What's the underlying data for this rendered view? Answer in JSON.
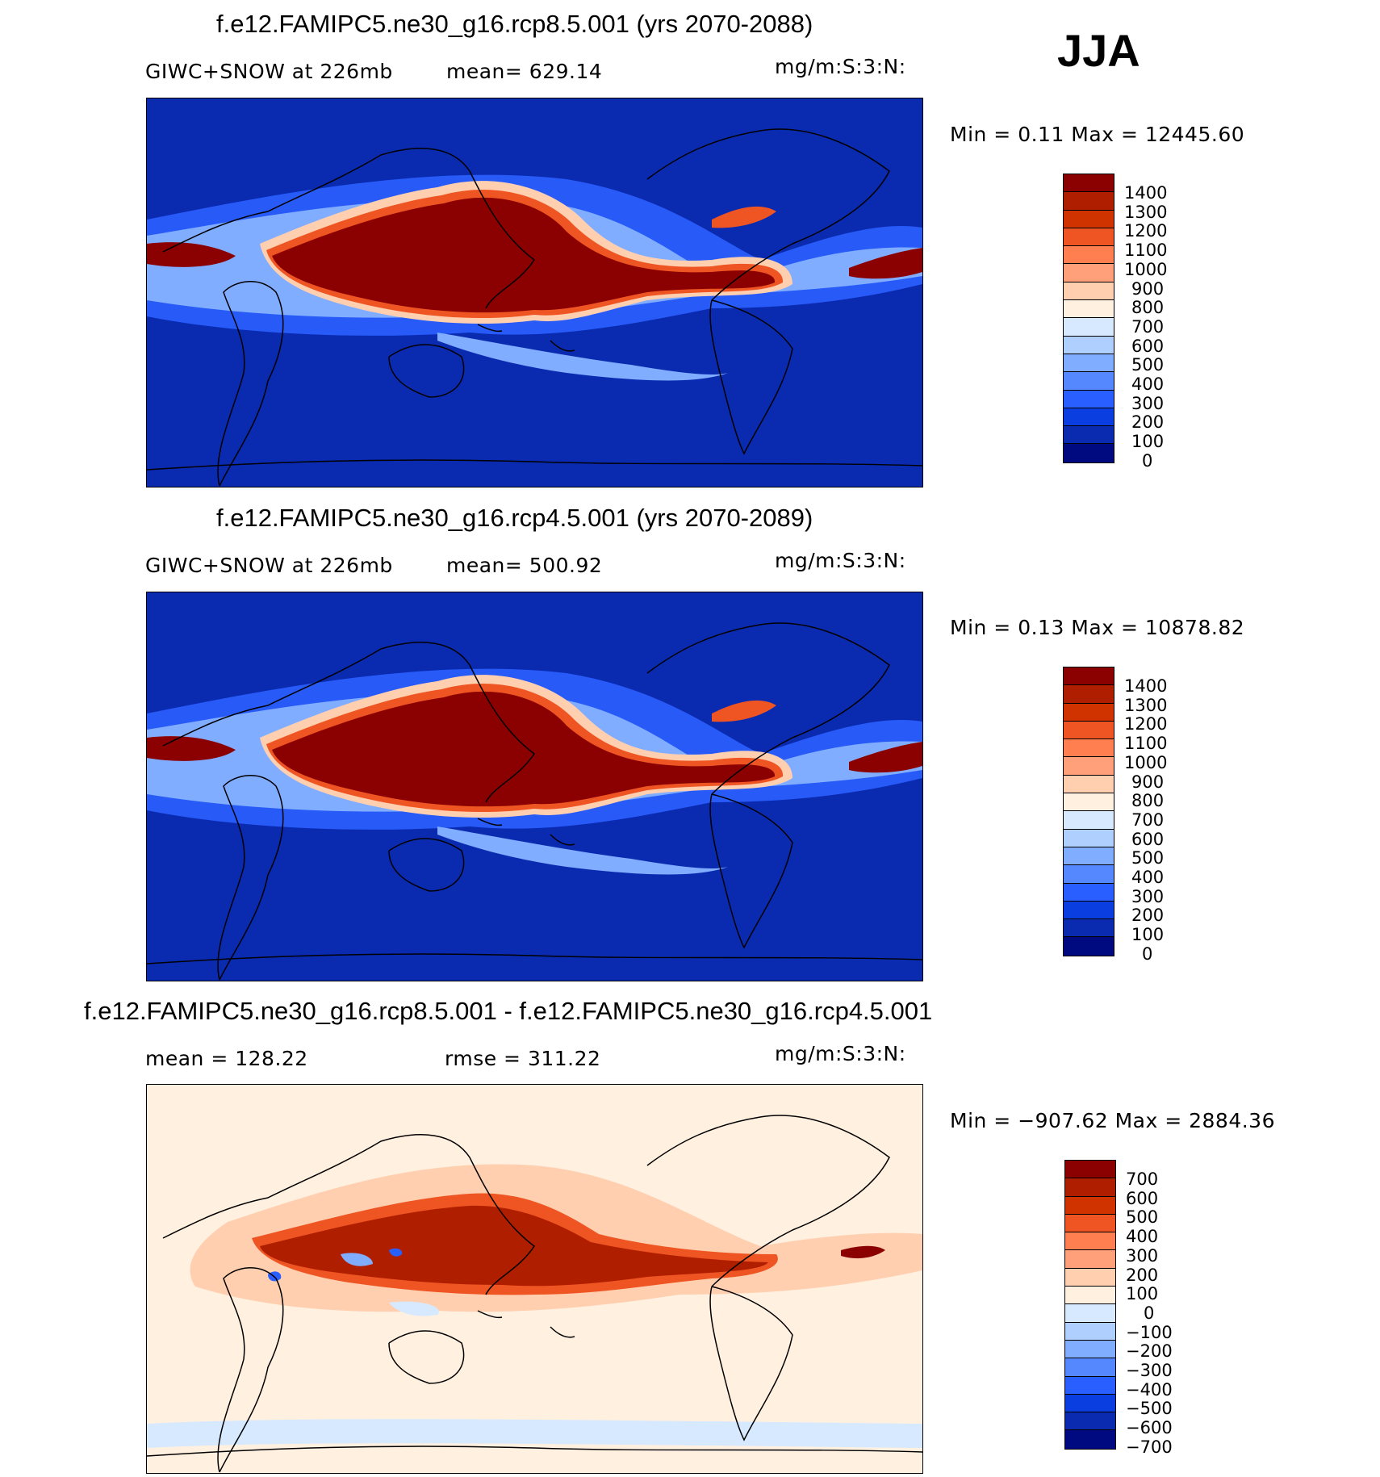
{
  "season": "JJA",
  "panels": [
    {
      "title": "f.e12.FAMIPC5.ne30_g16.rcp8.5.001 (yrs 2070-2088)",
      "left_text": "GIWC+SNOW at 226mb",
      "center_text": "mean= 629.14",
      "units": "mg/m:S:3:N:",
      "minmax": "Min =    0.11 Max = 12445.60",
      "colorbar_labels": [
        "1400",
        "1300",
        "1200",
        "1100",
        "1000",
        "900",
        "800",
        "700",
        "600",
        "500",
        "400",
        "300",
        "200",
        "100",
        "0"
      ],
      "colorbar_colors": [
        "#8b0000",
        "#b01e00",
        "#d03300",
        "#ee5522",
        "#ff7f50",
        "#ffa07a",
        "#ffcfb0",
        "#fff0e0",
        "#d6e9ff",
        "#afcfff",
        "#80adff",
        "#5588ff",
        "#2a5fff",
        "#0a3ee0",
        "#0a2ab0",
        "#000a80"
      ],
      "map_type": "absolute"
    },
    {
      "title": "f.e12.FAMIPC5.ne30_g16.rcp4.5.001 (yrs 2070-2089)",
      "left_text": "GIWC+SNOW at 226mb",
      "center_text": "mean= 500.92",
      "units": "mg/m:S:3:N:",
      "minmax": "Min =    0.13 Max = 10878.82",
      "colorbar_labels": [
        "1400",
        "1300",
        "1200",
        "1100",
        "1000",
        "900",
        "800",
        "700",
        "600",
        "500",
        "400",
        "300",
        "200",
        "100",
        "0"
      ],
      "colorbar_colors": [
        "#8b0000",
        "#b01e00",
        "#d03300",
        "#ee5522",
        "#ff7f50",
        "#ffa07a",
        "#ffcfb0",
        "#fff0e0",
        "#d6e9ff",
        "#afcfff",
        "#80adff",
        "#5588ff",
        "#2a5fff",
        "#0a3ee0",
        "#0a2ab0",
        "#000a80"
      ],
      "map_type": "absolute"
    },
    {
      "title": "f.e12.FAMIPC5.ne30_g16.rcp8.5.001 - f.e12.FAMIPC5.ne30_g16.rcp4.5.001",
      "left_text": "mean =  128.22",
      "center_text": "rmse =  311.22",
      "units": "mg/m:S:3:N:",
      "minmax": "Min = −907.62 Max =  2884.36",
      "colorbar_labels": [
        "700",
        "600",
        "500",
        "400",
        "300",
        "200",
        "100",
        "0",
        "−100",
        "−200",
        "−300",
        "−400",
        "−500",
        "−600",
        "−700"
      ],
      "colorbar_colors": [
        "#8b0000",
        "#b01e00",
        "#d03300",
        "#ee5522",
        "#ff7f50",
        "#ffa07a",
        "#ffcfb0",
        "#fff0e0",
        "#d6e9ff",
        "#afcfff",
        "#80adff",
        "#5588ff",
        "#2a5fff",
        "#0a3ee0",
        "#0a2ab0",
        "#000a80"
      ],
      "map_type": "difference"
    }
  ]
}
